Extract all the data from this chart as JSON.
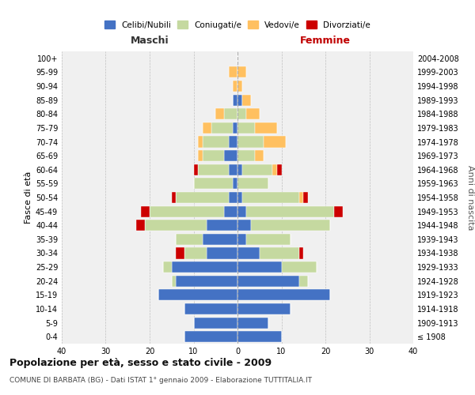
{
  "age_groups": [
    "100+",
    "95-99",
    "90-94",
    "85-89",
    "80-84",
    "75-79",
    "70-74",
    "65-69",
    "60-64",
    "55-59",
    "50-54",
    "45-49",
    "40-44",
    "35-39",
    "30-34",
    "25-29",
    "20-24",
    "15-19",
    "10-14",
    "5-9",
    "0-4"
  ],
  "birth_years": [
    "≤ 1908",
    "1909-1913",
    "1914-1918",
    "1919-1923",
    "1924-1928",
    "1929-1933",
    "1934-1938",
    "1939-1943",
    "1944-1948",
    "1949-1953",
    "1954-1958",
    "1959-1963",
    "1964-1968",
    "1969-1973",
    "1974-1978",
    "1979-1983",
    "1984-1988",
    "1989-1993",
    "1994-1998",
    "1999-2003",
    "2004-2008"
  ],
  "maschi": {
    "celibi": [
      0,
      0,
      0,
      1,
      0,
      1,
      2,
      3,
      2,
      1,
      2,
      3,
      7,
      8,
      7,
      15,
      14,
      18,
      12,
      10,
      12
    ],
    "coniugati": [
      0,
      0,
      0,
      0,
      3,
      5,
      6,
      5,
      7,
      9,
      12,
      17,
      14,
      6,
      5,
      2,
      1,
      0,
      0,
      0,
      0
    ],
    "vedovi": [
      0,
      2,
      1,
      0,
      2,
      2,
      1,
      1,
      0,
      0,
      0,
      0,
      0,
      0,
      0,
      0,
      0,
      0,
      0,
      0,
      0
    ],
    "divorziati": [
      0,
      0,
      0,
      0,
      0,
      0,
      0,
      0,
      1,
      0,
      1,
      2,
      2,
      0,
      2,
      0,
      0,
      0,
      0,
      0,
      0
    ]
  },
  "femmine": {
    "nubili": [
      0,
      0,
      0,
      1,
      0,
      0,
      0,
      0,
      1,
      0,
      1,
      2,
      3,
      2,
      5,
      10,
      14,
      21,
      12,
      7,
      10
    ],
    "coniugate": [
      0,
      0,
      0,
      0,
      2,
      4,
      6,
      4,
      7,
      7,
      13,
      20,
      18,
      10,
      9,
      8,
      2,
      0,
      0,
      0,
      0
    ],
    "vedove": [
      0,
      2,
      1,
      2,
      3,
      5,
      5,
      2,
      1,
      0,
      1,
      0,
      0,
      0,
      0,
      0,
      0,
      0,
      0,
      0,
      0
    ],
    "divorziate": [
      0,
      0,
      0,
      0,
      0,
      0,
      0,
      0,
      1,
      0,
      1,
      2,
      0,
      0,
      1,
      0,
      0,
      0,
      0,
      0,
      0
    ]
  },
  "colors": {
    "celibi": "#4472c4",
    "coniugati": "#c5d9a0",
    "vedovi": "#ffc060",
    "divorziati": "#cc0000"
  },
  "title": "Popolazione per età, sesso e stato civile - 2009",
  "subtitle": "COMUNE DI BARBATA (BG) - Dati ISTAT 1° gennaio 2009 - Elaborazione TUTTITALIA.IT",
  "xlabel_left": "Maschi",
  "xlabel_right": "Femmine",
  "ylabel_left": "Fasce di età",
  "ylabel_right": "Anni di nascita",
  "xlim": 40,
  "xticks": [
    40,
    30,
    20,
    10,
    0,
    10,
    20,
    30,
    40
  ],
  "legend_labels": [
    "Celibi/Nubili",
    "Coniugati/e",
    "Vedovi/e",
    "Divorziati/e"
  ],
  "bg_color": "#f0f0f0"
}
